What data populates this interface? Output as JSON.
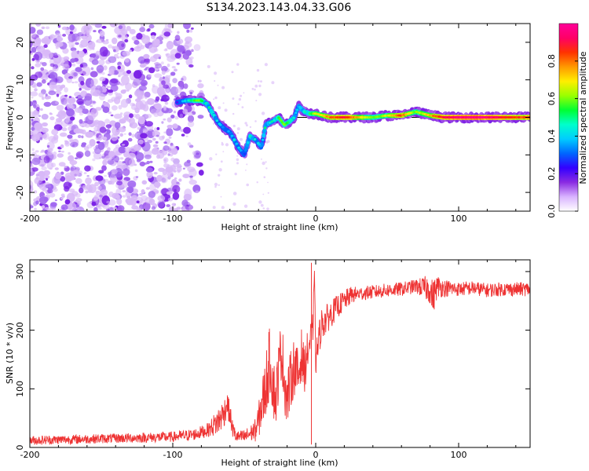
{
  "title": "S134.2023.143.04.33.G06",
  "chart_data": [
    {
      "type": "heatmap",
      "panel": "top",
      "xlabel": "Height of straight line (km)",
      "ylabel": "Frequency (Hz)",
      "xlim": [
        -200,
        150
      ],
      "ylim": [
        -25,
        25
      ],
      "xticks": [
        -200,
        -100,
        0,
        100
      ],
      "yticks": [
        -20,
        -10,
        0,
        10,
        20
      ],
      "xtick_labels": [
        "-200",
        "-100",
        "0",
        "100"
      ],
      "ytick_labels": [
        "-20",
        "-10",
        "0",
        "10",
        "20"
      ],
      "reference_line_y": 0,
      "noise_region_x": [
        -200,
        -75
      ],
      "signal_track": {
        "x": [
          -97,
          -90,
          -85,
          -80,
          -76,
          -72,
          -68,
          -64,
          -60,
          -57,
          -54,
          -50,
          -46,
          -42,
          -38,
          -35,
          -30,
          -26,
          -22,
          -18,
          -15,
          -12,
          -8,
          -4,
          0,
          10,
          20,
          30,
          40,
          50,
          60,
          70,
          75,
          80,
          90,
          100,
          110,
          120,
          130,
          140,
          150
        ],
        "y": [
          4,
          4.5,
          4.5,
          4.5,
          3.5,
          1,
          -1.5,
          -3,
          -4,
          -6,
          -8,
          -10,
          -5,
          -6,
          -8,
          -2,
          -1,
          0,
          -2,
          -1,
          0,
          3,
          1.5,
          1,
          1,
          0,
          0,
          0,
          0,
          0.5,
          0.5,
          1.5,
          1,
          0.5,
          0,
          0,
          0,
          0,
          0,
          0,
          0
        ],
        "amplitude": [
          0.2,
          0.4,
          0.5,
          0.55,
          0.4,
          0.45,
          0.35,
          0.3,
          0.3,
          0.4,
          0.35,
          0.25,
          0.45,
          0.4,
          0.3,
          0.45,
          0.4,
          0.5,
          0.55,
          0.45,
          0.4,
          0.35,
          0.4,
          0.5,
          0.6,
          0.75,
          0.85,
          0.7,
          0.55,
          0.6,
          0.8,
          0.55,
          0.6,
          0.7,
          0.85,
          0.9,
          0.95,
          0.9,
          0.85,
          0.8,
          0.8
        ]
      }
    },
    {
      "type": "line",
      "panel": "bottom",
      "xlabel": "Height of straight line (km)",
      "ylabel": "SNR (10 * v/v)",
      "xlim": [
        -200,
        150
      ],
      "ylim": [
        0,
        320
      ],
      "xticks": [
        -200,
        -100,
        0,
        100
      ],
      "yticks": [
        0,
        100,
        200,
        300
      ],
      "xtick_labels": [
        "-200",
        "-100",
        "0",
        "100"
      ],
      "ytick_labels": [
        "0",
        "100",
        "200",
        "300"
      ],
      "color": "#ee3333",
      "series": [
        {
          "name": "SNR",
          "x": [
            -200,
            -150,
            -100,
            -85,
            -75,
            -68,
            -64,
            -62,
            -60,
            -58,
            -56,
            -54,
            -50,
            -45,
            -42,
            -40,
            -38,
            -36,
            -34,
            -32,
            -30,
            -28,
            -26,
            -24,
            -22,
            -20,
            -18,
            -15,
            -12,
            -10,
            -8,
            -6,
            -4,
            -2,
            -1,
            0,
            2,
            4,
            8,
            15,
            20,
            25,
            30,
            40,
            50,
            60,
            70,
            80,
            82,
            85,
            90,
            100,
            110,
            120,
            130,
            140,
            150
          ],
          "y": [
            12,
            15,
            18,
            22,
            30,
            45,
            60,
            75,
            55,
            30,
            20,
            18,
            18,
            25,
            30,
            45,
            70,
            90,
            120,
            150,
            110,
            80,
            130,
            170,
            120,
            80,
            110,
            140,
            120,
            160,
            130,
            160,
            180,
            200,
            305,
            150,
            180,
            210,
            220,
            240,
            250,
            260,
            262,
            265,
            268,
            270,
            275,
            270,
            255,
            275,
            272,
            270,
            272,
            268,
            270,
            270,
            270
          ],
          "noise_amplitude": [
            8,
            8,
            9,
            10,
            12,
            25,
            25,
            22,
            20,
            15,
            12,
            10,
            12,
            15,
            20,
            30,
            40,
            50,
            60,
            60,
            55,
            50,
            50,
            55,
            55,
            50,
            50,
            50,
            45,
            45,
            40,
            35,
            30,
            30,
            10,
            30,
            30,
            28,
            25,
            20,
            18,
            15,
            12,
            12,
            12,
            12,
            12,
            25,
            30,
            20,
            15,
            12,
            12,
            12,
            12,
            12,
            12
          ]
        }
      ]
    }
  ],
  "colorbar": {
    "label": "Normalized spectral amplitude",
    "ticks": [
      0.0,
      0.2,
      0.4,
      0.6,
      0.8
    ],
    "tick_labels": [
      "0.0",
      "0.2",
      "0.4",
      "0.6",
      "0.8"
    ],
    "range": [
      0.0,
      1.0
    ],
    "colors": [
      "#ffffff",
      "#d9b3ff",
      "#8a2be2",
      "#3300ff",
      "#0066ff",
      "#00ccff",
      "#00ffcc",
      "#00ff33",
      "#99ff00",
      "#ffee00",
      "#ff9900",
      "#ff3300",
      "#ff0066",
      "#ff0099"
    ]
  }
}
